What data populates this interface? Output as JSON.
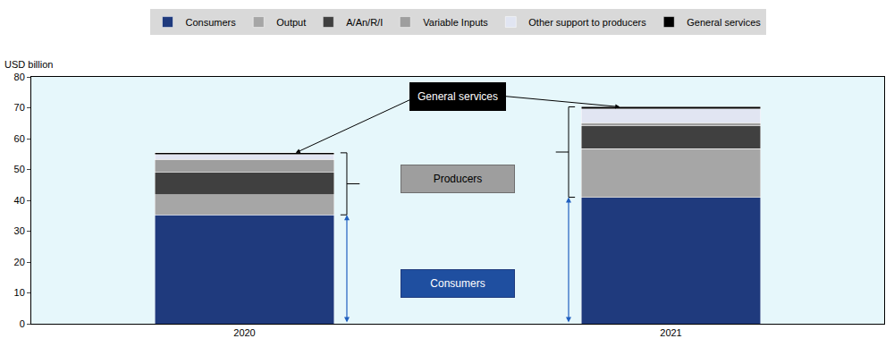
{
  "chart_data": {
    "type": "bar",
    "stacked": true,
    "ylabel": "USD billion",
    "categories": [
      "2020",
      "2021"
    ],
    "series": [
      {
        "name": "Consumers",
        "color": "#1f3a7d",
        "values": [
          35.3,
          41.0
        ]
      },
      {
        "name": "Output",
        "color": "#a6a6a6",
        "values": [
          6.5,
          15.7
        ]
      },
      {
        "name": "A/An/R/I",
        "color": "#404040",
        "values": [
          7.2,
          7.5
        ]
      },
      {
        "name": "Variable Inputs",
        "color": "#9e9e9e",
        "values": [
          4.2,
          1.0
        ]
      },
      {
        "name": "Other support to producers",
        "color": "#e1e5f2",
        "values": [
          1.6,
          4.5
        ]
      },
      {
        "name": "General services",
        "color": "#000000",
        "values": [
          0.6,
          0.6
        ]
      }
    ],
    "ylim": [
      0,
      80
    ],
    "yticks": [
      0,
      10,
      20,
      30,
      40,
      50,
      60,
      70,
      80
    ],
    "grid": false,
    "legend": "top",
    "annotations": [
      {
        "text": "General services"
      },
      {
        "text": "Producers"
      },
      {
        "text": "Consumers"
      }
    ]
  }
}
